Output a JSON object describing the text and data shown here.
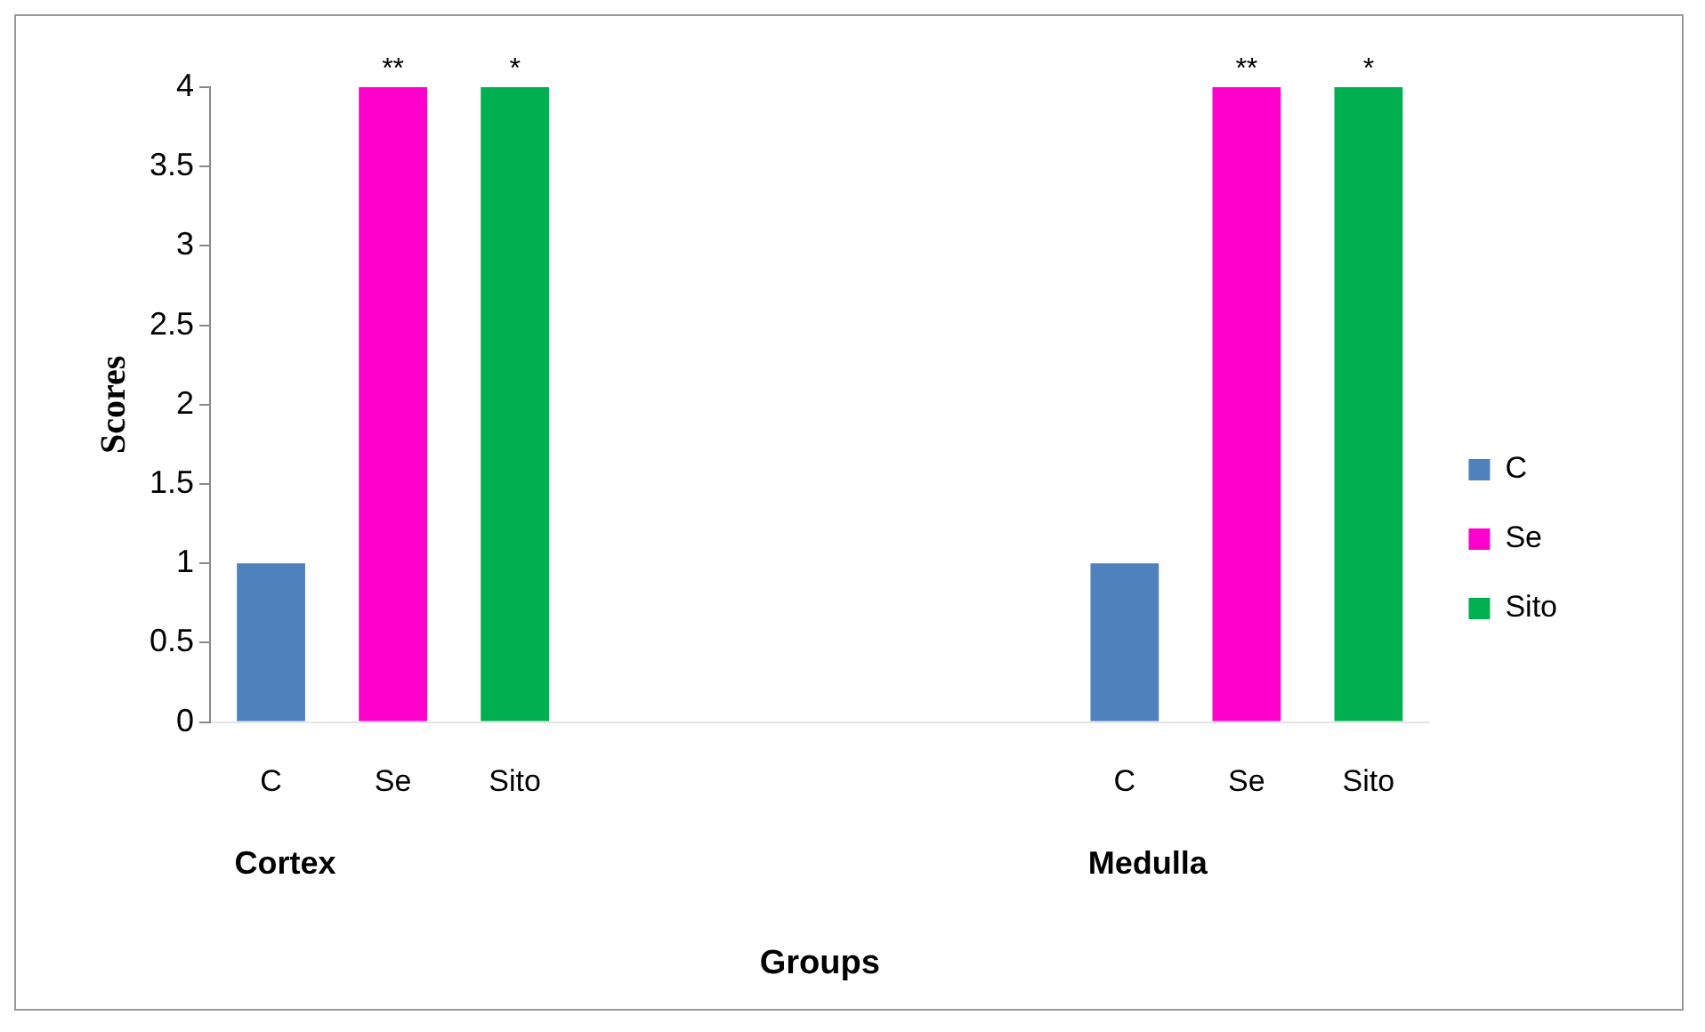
{
  "chart_data": {
    "type": "bar",
    "stacked": true,
    "xlabel": "Groups",
    "ylabel": "Scores",
    "categories": [
      "C",
      "Se",
      "Sito",
      null,
      null,
      null,
      null,
      "C",
      "Se",
      "Sito"
    ],
    "series": [
      {
        "name": "C",
        "color": "#4f81bd",
        "values": [
          1,
          null,
          null,
          null,
          null,
          null,
          null,
          1,
          null,
          null
        ]
      },
      {
        "name": "Se",
        "color": "#ff00cc",
        "values": [
          null,
          4,
          null,
          null,
          null,
          null,
          null,
          null,
          4,
          null
        ],
        "value_labels": [
          null,
          "**",
          null,
          null,
          null,
          null,
          null,
          null,
          "**",
          null
        ]
      },
      {
        "name": "Sito",
        "color": "#00b050",
        "values": [
          null,
          null,
          4,
          null,
          null,
          null,
          null,
          null,
          null,
          4
        ],
        "value_labels": [
          null,
          null,
          "*",
          null,
          null,
          null,
          null,
          null,
          null,
          "*"
        ]
      }
    ],
    "annotations": [
      "Cortex",
      "Medulla"
    ],
    "ylim": [
      0,
      4
    ],
    "yticks": [
      0,
      0.5,
      1,
      1.5,
      2,
      2.5,
      3,
      3.5,
      4
    ],
    "grid": false,
    "legend": "right"
  }
}
